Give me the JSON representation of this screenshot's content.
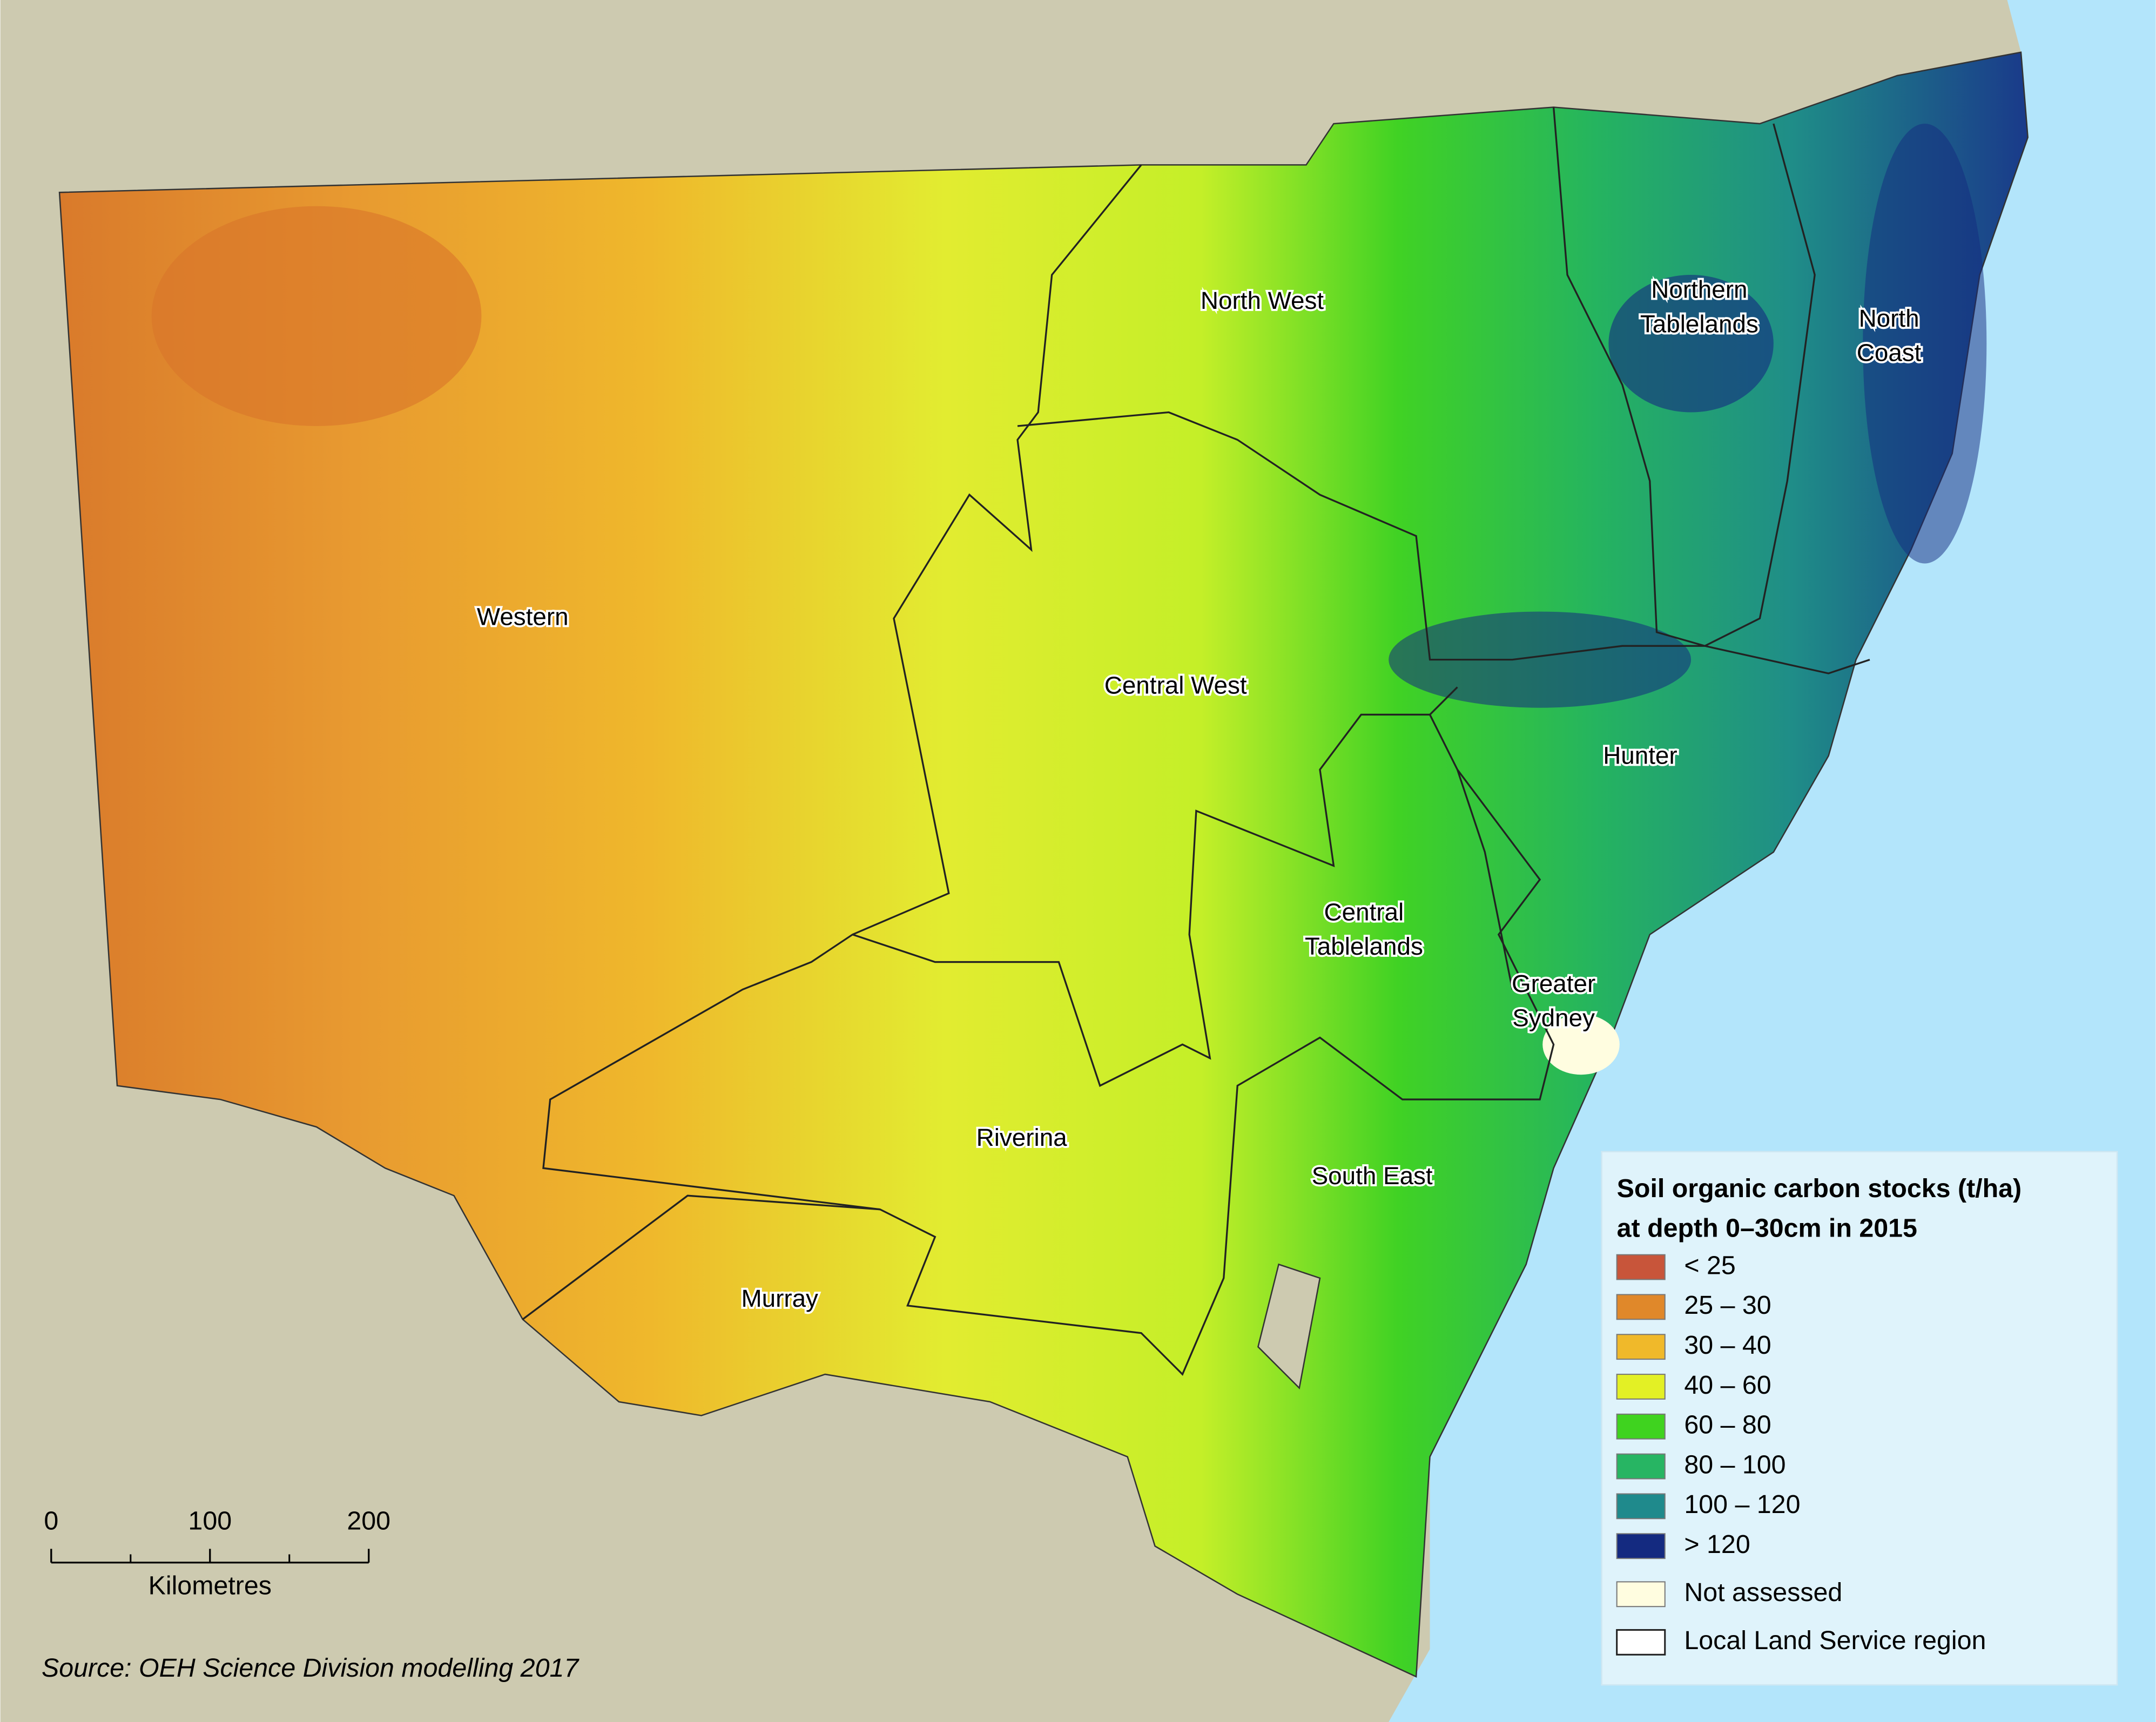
{
  "map": {
    "regions": [
      {
        "lines": [
          "Western"
        ]
      },
      {
        "lines": [
          "North West"
        ]
      },
      {
        "lines": [
          "Northern",
          "Tablelands"
        ]
      },
      {
        "lines": [
          "North",
          "Coast"
        ]
      },
      {
        "lines": [
          "Central West"
        ]
      },
      {
        "lines": [
          "Hunter"
        ]
      },
      {
        "lines": [
          "Central",
          "Tablelands"
        ]
      },
      {
        "lines": [
          "Greater",
          "Sydney"
        ]
      },
      {
        "lines": [
          "Riverina"
        ]
      },
      {
        "lines": [
          "South East"
        ]
      },
      {
        "lines": [
          "Murray"
        ]
      }
    ],
    "legend": {
      "title": [
        "Soil organic carbon stocks (t/ha)",
        "at depth 0–30cm in 2015"
      ],
      "items": [
        {
          "label": "< 25",
          "color": "#c8553a"
        },
        {
          "label": "25 – 30",
          "color": "#e0882a"
        },
        {
          "label": "30 – 40",
          "color": "#f0b92a"
        },
        {
          "label": "40 – 60",
          "color": "#e3f025"
        },
        {
          "label": "60 – 80",
          "color": "#3fd31f"
        },
        {
          "label": "80 – 100",
          "color": "#27b563"
        },
        {
          "label": "100 – 120",
          "color": "#1f8a8c"
        },
        {
          "label": "> 120",
          "color": "#142a80"
        },
        {
          "label": "Not assessed",
          "color": "#fffde0"
        }
      ],
      "boundary_label": "Local Land Service region"
    },
    "scale_bar": {
      "ticks": [
        0,
        100,
        200
      ],
      "unit": "Kilometres"
    },
    "source": "Source: OEH Science Division modelling 2017"
  }
}
